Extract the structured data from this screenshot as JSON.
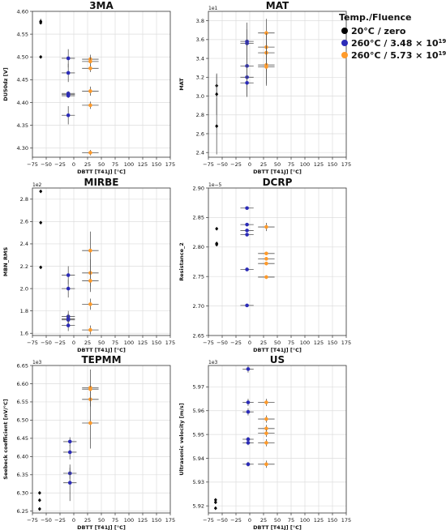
{
  "legend": {
    "title": "Temp./Fluence",
    "entries": [
      {
        "label": "20°C / zero",
        "color": "#000000",
        "base": "",
        "exp": ""
      },
      {
        "label": "260°C / 3.48 × 10",
        "color": "#2b2bb8",
        "base": "",
        "exp": "19"
      },
      {
        "label": "260°C / 5.73 × 10",
        "color": "#ff9a2a",
        "base": "",
        "exp": "19"
      }
    ]
  },
  "colors": {
    "zero": "#000000",
    "f348": "#2b2bb8",
    "f573": "#ff9a2a",
    "errbar": "#555555",
    "grid": "#dddddd"
  },
  "chart_data": [
    {
      "type": "scatter",
      "title": "3MA",
      "xlabel": "DBTT [T41J] [°C]",
      "ylabel": "DU50dz [V]",
      "multiplier": "",
      "xlim": [
        -75,
        175
      ],
      "ylim": [
        4.28,
        4.6
      ],
      "xticks": [
        -75,
        -50,
        -25,
        0,
        25,
        50,
        75,
        100,
        125,
        150,
        175
      ],
      "yticks": [
        4.3,
        4.35,
        4.4,
        4.45,
        4.5,
        4.55,
        4.6
      ],
      "ytick_labels": [
        "4.30",
        "4.35",
        "4.40",
        "4.45",
        "4.50",
        "4.55",
        "4.60"
      ],
      "grid": true,
      "series": [
        {
          "group": "zero",
          "points": [
            [
              -60,
              4.578,
              0,
              0.006
            ],
            [
              -60,
              4.575,
              0,
              0
            ],
            [
              -60,
              4.5,
              0,
              0.003
            ]
          ]
        },
        {
          "group": "f348",
          "points": [
            [
              -10,
              4.497,
              12,
              0.02
            ],
            [
              -10,
              4.465,
              12,
              0.02
            ],
            [
              -10,
              4.42,
              12,
              0.005
            ],
            [
              -10,
              4.418,
              12,
              0.005
            ],
            [
              -10,
              4.415,
              12,
              0.005
            ],
            [
              -10,
              4.372,
              12,
              0.02
            ]
          ]
        },
        {
          "group": "f573",
          "points": [
            [
              30,
              4.495,
              15,
              0.01
            ],
            [
              30,
              4.49,
              15,
              0.01
            ],
            [
              30,
              4.475,
              15,
              0.008
            ],
            [
              30,
              4.425,
              15,
              0.01
            ],
            [
              30,
              4.394,
              15,
              0.008
            ],
            [
              30,
              4.29,
              15,
              0.006
            ]
          ]
        }
      ]
    },
    {
      "type": "scatter",
      "title": "MAT",
      "xlabel": "DBTT [T41J] [°C]",
      "ylabel": "MAT",
      "multiplier": "1e1",
      "xlim": [
        -75,
        175
      ],
      "ylim": [
        2.35,
        3.9
      ],
      "xticks": [
        -75,
        -50,
        -25,
        0,
        25,
        50,
        75,
        100,
        125,
        150,
        175
      ],
      "yticks": [
        2.4,
        2.6,
        2.8,
        3.0,
        3.2,
        3.4,
        3.6,
        3.8
      ],
      "ytick_labels": [
        "2.4",
        "2.6",
        "2.8",
        "3.0",
        "3.2",
        "3.4",
        "3.6",
        "3.8"
      ],
      "grid": true,
      "series": [
        {
          "group": "zero",
          "points": [
            [
              -60,
              3.11,
              0,
              0.12
            ],
            [
              -60,
              3.02,
              0,
              0.22
            ],
            [
              -60,
              2.68,
              0,
              0.3
            ]
          ]
        },
        {
          "group": "f348",
          "points": [
            [
              -5,
              3.58,
              12,
              0.2
            ],
            [
              -5,
              3.56,
              12,
              0.15
            ],
            [
              -5,
              3.32,
              12,
              0.25
            ],
            [
              -5,
              3.2,
              12,
              0.2
            ],
            [
              -5,
              3.14,
              12,
              0.15
            ]
          ]
        },
        {
          "group": "f573",
          "points": [
            [
              30,
              3.67,
              15,
              0.15
            ],
            [
              30,
              3.52,
              15,
              0.15
            ],
            [
              30,
              3.46,
              15,
              0.2
            ],
            [
              30,
              3.33,
              15,
              0.2
            ],
            [
              30,
              3.31,
              15,
              0.2
            ]
          ]
        }
      ]
    },
    {
      "type": "scatter",
      "title": "MIRBE",
      "xlabel": "DBTT [T41J] [°C]",
      "ylabel": "MBN_RMS",
      "multiplier": "1e2",
      "xlim": [
        -75,
        175
      ],
      "ylim": [
        1.58,
        2.9
      ],
      "xticks": [
        -75,
        -50,
        -25,
        0,
        25,
        50,
        75,
        100,
        125,
        150,
        175
      ],
      "yticks": [
        1.6,
        1.8,
        2.0,
        2.2,
        2.4,
        2.6,
        2.8
      ],
      "ytick_labels": [
        "1.6",
        "1.8",
        "2.0",
        "2.2",
        "2.4",
        "2.6",
        "2.8"
      ],
      "grid": true,
      "series": [
        {
          "group": "zero",
          "points": [
            [
              -60,
              2.87,
              0,
              0
            ],
            [
              -60,
              2.59,
              0,
              0
            ],
            [
              -60,
              2.19,
              0,
              0
            ]
          ]
        },
        {
          "group": "f348",
          "points": [
            [
              -10,
              2.12,
              12,
              0.08
            ],
            [
              -10,
              2.0,
              12,
              0.08
            ],
            [
              -10,
              1.75,
              12,
              0.05
            ],
            [
              -10,
              1.73,
              12,
              0.05
            ],
            [
              -10,
              1.72,
              12,
              0.05
            ],
            [
              -10,
              1.67,
              12,
              0.05
            ]
          ]
        },
        {
          "group": "f573",
          "points": [
            [
              30,
              2.34,
              15,
              0.17
            ],
            [
              30,
              2.14,
              15,
              0.12
            ],
            [
              30,
              2.07,
              15,
              0.1
            ],
            [
              30,
              1.86,
              15,
              0.05
            ],
            [
              30,
              1.63,
              15,
              0.04
            ]
          ]
        }
      ]
    },
    {
      "type": "scatter",
      "title": "DCRP",
      "xlabel": "DBTT [T41J] [°C]",
      "ylabel": "Resistance_2",
      "multiplier": "1e−5",
      "xlim": [
        -75,
        175
      ],
      "ylim": [
        2.65,
        2.9
      ],
      "xticks": [
        -75,
        -50,
        -25,
        0,
        25,
        50,
        75,
        100,
        125,
        150,
        175
      ],
      "yticks": [
        2.65,
        2.7,
        2.75,
        2.8,
        2.85,
        2.9
      ],
      "ytick_labels": [
        "2.65",
        "2.70",
        "2.75",
        "2.80",
        "2.85",
        "2.90"
      ],
      "grid": true,
      "series": [
        {
          "group": "zero",
          "points": [
            [
              -60,
              2.831,
              0,
              0
            ],
            [
              -60,
              2.806,
              0,
              0
            ],
            [
              -60,
              2.804,
              0,
              0
            ]
          ]
        },
        {
          "group": "f348",
          "points": [
            [
              -5,
              2.866,
              12,
              0
            ],
            [
              -5,
              2.838,
              12,
              0.003
            ],
            [
              -5,
              2.828,
              12,
              0.003
            ],
            [
              -5,
              2.821,
              12,
              0.003
            ],
            [
              -5,
              2.762,
              12,
              0.003
            ],
            [
              -5,
              2.701,
              12,
              0.003
            ]
          ]
        },
        {
          "group": "f573",
          "points": [
            [
              30,
              2.834,
              15,
              0.007
            ],
            [
              30,
              2.789,
              15,
              0.003
            ],
            [
              30,
              2.78,
              15,
              0.003
            ],
            [
              30,
              2.772,
              15,
              0.003
            ],
            [
              30,
              2.749,
              15,
              0.003
            ]
          ]
        }
      ]
    },
    {
      "type": "scatter",
      "title": "TEPMM",
      "xlabel": "DBTT [T41J] [°C]",
      "ylabel": "Seebeck coefficient [nV/°C]",
      "multiplier": "1e3",
      "xlim": [
        -75,
        175
      ],
      "ylim": [
        6.245,
        6.65
      ],
      "xticks": [
        -75,
        -50,
        -25,
        0,
        25,
        50,
        75,
        100,
        125,
        150,
        175
      ],
      "yticks": [
        6.25,
        6.3,
        6.35,
        6.4,
        6.45,
        6.5,
        6.55,
        6.6,
        6.65
      ],
      "ytick_labels": [
        "6.25",
        "6.30",
        "6.35",
        "6.40",
        "6.45",
        "6.50",
        "6.55",
        "6.60",
        "6.65"
      ],
      "grid": true,
      "series": [
        {
          "group": "zero",
          "points": [
            [
              -62,
              6.3,
              0,
              0
            ],
            [
              -62,
              6.28,
              0,
              0
            ],
            [
              -62,
              6.256,
              0,
              0
            ]
          ]
        },
        {
          "group": "f348",
          "points": [
            [
              -7,
              6.441,
              12,
              0.012
            ],
            [
              -7,
              6.412,
              12,
              0.02
            ],
            [
              -7,
              6.354,
              12,
              0.015
            ],
            [
              -7,
              6.328,
              12,
              0.05
            ]
          ]
        },
        {
          "group": "f573",
          "points": [
            [
              30,
              6.589,
              15,
              0.05
            ],
            [
              30,
              6.585,
              15,
              0.01
            ],
            [
              30,
              6.557,
              15,
              0.02
            ],
            [
              30,
              6.492,
              15,
              0.07
            ]
          ]
        }
      ]
    },
    {
      "type": "scatter",
      "title": "US",
      "xlabel": "DBTT [T41J] [°C]",
      "ylabel": "Ultrasonic velocity [m/s]",
      "multiplier": "1e3",
      "xlim": [
        -75,
        175
      ],
      "ylim": [
        5.917,
        5.979
      ],
      "xticks": [
        -75,
        -50,
        -25,
        0,
        25,
        50,
        75,
        100,
        125,
        150,
        175
      ],
      "yticks": [
        5.92,
        5.93,
        5.94,
        5.95,
        5.96,
        5.97
      ],
      "ytick_labels": [
        "5.92",
        "5.93",
        "5.94",
        "5.95",
        "5.96",
        "5.97"
      ],
      "grid": true,
      "series": [
        {
          "group": "zero",
          "points": [
            [
              -62,
              5.9225,
              0,
              0
            ],
            [
              -62,
              5.9215,
              0,
              0
            ],
            [
              -62,
              5.919,
              0,
              0
            ]
          ]
        },
        {
          "group": "f348",
          "points": [
            [
              -3,
              5.9775,
              10,
              0.0015
            ],
            [
              -3,
              5.9635,
              10,
              0.0015
            ],
            [
              -3,
              5.9595,
              10,
              0.0015
            ],
            [
              -3,
              5.948,
              10,
              0.001
            ],
            [
              -3,
              5.9465,
              10,
              0.001
            ],
            [
              -3,
              5.9375,
              10,
              0.001
            ]
          ]
        },
        {
          "group": "f573",
          "points": [
            [
              30,
              5.9635,
              15,
              0.0015
            ],
            [
              30,
              5.9565,
              15,
              0.0015
            ],
            [
              30,
              5.9525,
              15,
              0.0015
            ],
            [
              30,
              5.9505,
              15,
              0.0015
            ],
            [
              30,
              5.9465,
              15,
              0.0015
            ],
            [
              30,
              5.9375,
              15,
              0.0015
            ]
          ]
        }
      ]
    }
  ]
}
